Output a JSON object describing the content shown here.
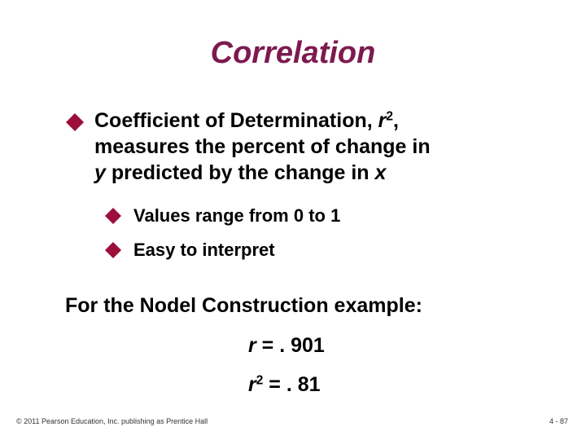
{
  "title": "Correlation",
  "main_bullet": {
    "lines": [
      [
        "Coefficient of Determination, ",
        "r",
        "2",
        ","
      ],
      [
        "measures the percent of change in"
      ],
      [
        "y",
        " predicted by the change in ",
        "x"
      ]
    ]
  },
  "sub_bullets": [
    "Values range from 0 to 1",
    "Easy to interpret"
  ],
  "example": {
    "heading": "For the Nodel Construction example:",
    "r_line": [
      "r",
      " = . 901"
    ],
    "r2_line": [
      "r",
      "2",
      " = . 81"
    ]
  },
  "footer": {
    "copyright": "© 2011 Pearson Education, Inc. publishing as Prentice Hall",
    "page": "4 - 87"
  }
}
